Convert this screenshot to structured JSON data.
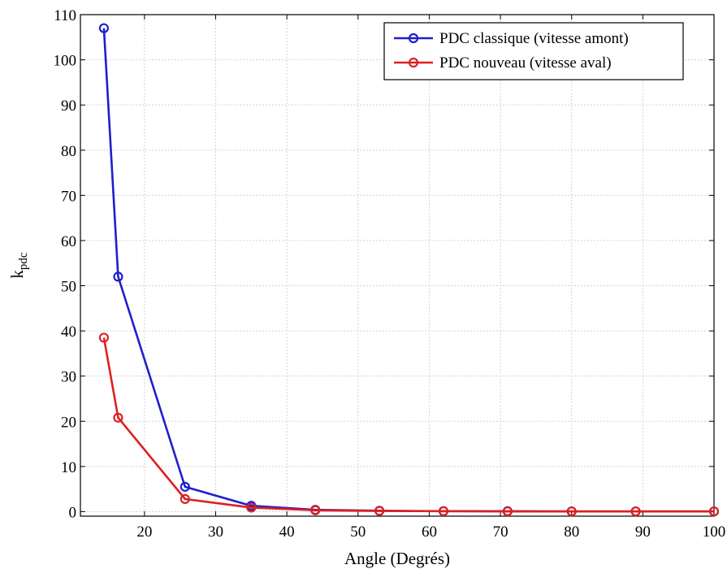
{
  "chart_data": {
    "type": "line",
    "xlabel": "Angle (Degrés)",
    "ylabel_main": "k",
    "ylabel_sub": "pdc",
    "xlim": [
      11,
      100
    ],
    "ylim": [
      -1,
      110
    ],
    "xticks": [
      20,
      30,
      40,
      50,
      60,
      70,
      80,
      90,
      100
    ],
    "yticks": [
      0,
      10,
      20,
      30,
      40,
      50,
      60,
      70,
      80,
      90,
      100,
      110
    ],
    "grid": true,
    "legend_position": "top-right",
    "series": [
      {
        "name": "PDC classique (vitesse amont)",
        "color": "#1f1fcc",
        "marker": "circle",
        "x": [
          14.3,
          16.3,
          25.7,
          35,
          44,
          53,
          62,
          71,
          80,
          89,
          100
        ],
        "y": [
          107,
          52,
          5.5,
          1.3,
          0.4,
          0.2,
          0.1,
          0.1,
          0.05,
          0.05,
          0.05
        ]
      },
      {
        "name": "PDC nouveau (vitesse aval)",
        "color": "#dd2020",
        "marker": "circle",
        "x": [
          14.3,
          16.3,
          25.7,
          35,
          44,
          53,
          62,
          71,
          80,
          89,
          100
        ],
        "y": [
          38.5,
          20.8,
          2.8,
          0.9,
          0.3,
          0.15,
          0.1,
          0.05,
          0.05,
          0.05,
          0.05
        ]
      }
    ]
  }
}
